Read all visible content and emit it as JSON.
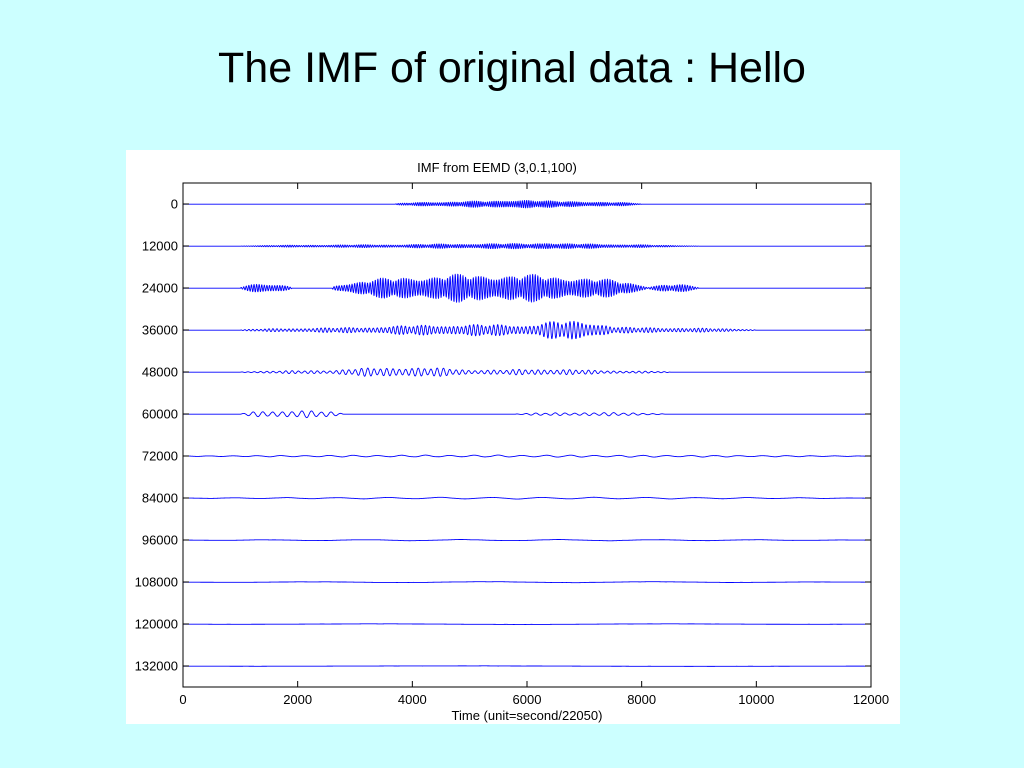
{
  "slide": {
    "title": "The IMF of original data : Hello",
    "background": "#ccffff"
  },
  "chart_data": {
    "type": "line",
    "title": "IMF from EEMD (3,0.1,100)",
    "xlabel": "Time (unit=second/22050)",
    "ylabel": "",
    "xlim": [
      0,
      12000
    ],
    "ylim": [
      -6000,
      138000
    ],
    "y_reversed": true,
    "x_ticks": [
      0,
      2000,
      4000,
      6000,
      8000,
      10000,
      12000
    ],
    "x_tick_labels": [
      "0",
      "2000",
      "4000",
      "6000",
      "8000",
      "10000",
      "12000"
    ],
    "y_ticks": [
      0,
      12000,
      24000,
      36000,
      48000,
      60000,
      72000,
      84000,
      96000,
      108000,
      120000,
      132000
    ],
    "y_tick_labels": [
      "0",
      "12000",
      "24000",
      "36000",
      "48000",
      "60000",
      "72000",
      "84000",
      "96000",
      "108000",
      "120000",
      "132000"
    ],
    "grid": false,
    "line_color": "#0000ff",
    "series": [
      {
        "offset": 0,
        "period": 38,
        "segments": [
          {
            "x": [
              3700,
              8000
            ],
            "amp": 1000
          },
          {
            "x": [
              5400,
              6400
            ],
            "amp": 1500
          }
        ]
      },
      {
        "offset": 12000,
        "period": 40,
        "segments": [
          {
            "x": [
              1000,
              9000
            ],
            "amp": 500
          },
          {
            "x": [
              3200,
              8500
            ],
            "amp": 800
          },
          {
            "x": [
              6000,
              6600
            ],
            "amp": 1200
          }
        ]
      },
      {
        "offset": 24000,
        "period": 45,
        "segments": [
          {
            "x": [
              1000,
              1900
            ],
            "amp": 1400
          },
          {
            "x": [
              2600,
              8100
            ],
            "amp": 4200
          },
          {
            "x": [
              8100,
              9000
            ],
            "amp": 1100
          }
        ]
      },
      {
        "offset": 36000,
        "period": 70,
        "segments": [
          {
            "x": [
              1000,
              10000
            ],
            "amp": 1000
          },
          {
            "x": [
              2700,
              8000
            ],
            "amp": 1700
          },
          {
            "x": [
              5900,
              7600
            ],
            "amp": 2800
          }
        ]
      },
      {
        "offset": 48000,
        "period": 110,
        "segments": [
          {
            "x": [
              1000,
              8500
            ],
            "amp": 700
          },
          {
            "x": [
              2500,
              5200
            ],
            "amp": 1400
          },
          {
            "x": [
              5200,
              7400
            ],
            "amp": 900
          }
        ]
      },
      {
        "offset": 60000,
        "period": 170,
        "segments": [
          {
            "x": [
              1000,
              2800
            ],
            "amp": 1100
          },
          {
            "x": [
              5800,
              8400
            ],
            "amp": 500
          }
        ]
      },
      {
        "offset": 72000,
        "period": 420,
        "segments": [
          {
            "x": [
              0,
              11900
            ],
            "amp": 320
          }
        ]
      },
      {
        "offset": 84000,
        "period": 900,
        "segments": [
          {
            "x": [
              0,
              11900
            ],
            "amp": 260
          }
        ]
      },
      {
        "offset": 96000,
        "period": 1700,
        "segments": [
          {
            "x": [
              0,
              11900
            ],
            "amp": 200
          }
        ]
      },
      {
        "offset": 108000,
        "period": 3000,
        "segments": [
          {
            "x": [
              0,
              11900
            ],
            "amp": 160
          }
        ]
      },
      {
        "offset": 120000,
        "period": 5200,
        "segments": [
          {
            "x": [
              0,
              11900
            ],
            "amp": 120
          }
        ]
      },
      {
        "offset": 132000,
        "period": 9000,
        "segments": [
          {
            "x": [
              0,
              11900
            ],
            "amp": 90
          }
        ]
      }
    ]
  }
}
